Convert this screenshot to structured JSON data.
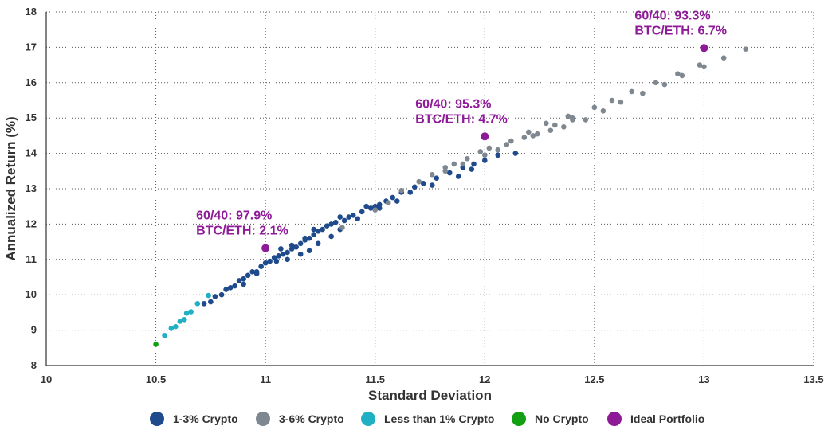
{
  "chart_data": {
    "type": "scatter",
    "title": "",
    "xlabel": "Standard Deviation",
    "ylabel": "Annualized Return (%)",
    "xlim": [
      10,
      13.5
    ],
    "ylim": [
      8,
      18
    ],
    "xticks": [
      10,
      10.5,
      11,
      11.5,
      12,
      12.5,
      13,
      13.5
    ],
    "xtick_labels": [
      "10",
      "10.5",
      "11",
      "11.5",
      "12",
      "12.5",
      "13",
      "13.5"
    ],
    "yticks": [
      8,
      9,
      10,
      11,
      12,
      13,
      14,
      15,
      16,
      17,
      18
    ],
    "ytick_labels": [
      "8",
      "9",
      "10",
      "11",
      "12",
      "13",
      "14",
      "15",
      "16",
      "17",
      "18"
    ],
    "grid": "dotted",
    "legend_position": "bottom",
    "series": [
      {
        "name": "1-3% Crypto",
        "color": "#1f4a8c",
        "points": [
          [
            10.72,
            9.75
          ],
          [
            10.75,
            9.8
          ],
          [
            10.77,
            9.95
          ],
          [
            10.8,
            10.0
          ],
          [
            10.82,
            10.15
          ],
          [
            10.84,
            10.2
          ],
          [
            10.86,
            10.25
          ],
          [
            10.88,
            10.4
          ],
          [
            10.9,
            10.45
          ],
          [
            10.92,
            10.55
          ],
          [
            10.94,
            10.65
          ],
          [
            10.96,
            10.6
          ],
          [
            10.98,
            10.8
          ],
          [
            11.0,
            10.9
          ],
          [
            11.02,
            10.95
          ],
          [
            11.04,
            11.05
          ],
          [
            11.06,
            11.1
          ],
          [
            11.08,
            11.15
          ],
          [
            11.1,
            11.2
          ],
          [
            11.12,
            11.3
          ],
          [
            11.14,
            11.35
          ],
          [
            11.16,
            11.45
          ],
          [
            11.18,
            11.55
          ],
          [
            11.2,
            11.6
          ],
          [
            11.22,
            11.7
          ],
          [
            11.24,
            11.8
          ],
          [
            11.26,
            11.85
          ],
          [
            11.28,
            11.95
          ],
          [
            11.3,
            12.0
          ],
          [
            11.32,
            12.05
          ],
          [
            11.36,
            12.1
          ],
          [
            11.38,
            12.2
          ],
          [
            11.4,
            12.25
          ],
          [
            11.44,
            12.35
          ],
          [
            11.48,
            12.45
          ],
          [
            11.5,
            12.5
          ],
          [
            11.52,
            12.55
          ],
          [
            11.55,
            12.65
          ],
          [
            11.58,
            12.75
          ],
          [
            11.62,
            12.9
          ],
          [
            11.68,
            13.05
          ],
          [
            11.72,
            13.15
          ],
          [
            11.78,
            13.3
          ],
          [
            11.84,
            13.45
          ],
          [
            11.9,
            13.6
          ],
          [
            11.95,
            13.7
          ],
          [
            12.0,
            13.8
          ],
          [
            12.06,
            13.95
          ],
          [
            12.14,
            14.0
          ],
          [
            10.9,
            10.3
          ],
          [
            10.96,
            10.65
          ],
          [
            11.05,
            10.95
          ],
          [
            11.1,
            11.0
          ],
          [
            11.16,
            11.15
          ],
          [
            11.2,
            11.25
          ],
          [
            11.24,
            11.45
          ],
          [
            11.3,
            11.65
          ],
          [
            11.34,
            11.85
          ],
          [
            11.42,
            12.15
          ],
          [
            11.52,
            12.45
          ],
          [
            11.6,
            12.65
          ],
          [
            11.66,
            12.9
          ],
          [
            11.76,
            13.1
          ],
          [
            11.88,
            13.35
          ],
          [
            11.94,
            13.55
          ],
          [
            11.07,
            11.3
          ],
          [
            11.12,
            11.4
          ],
          [
            11.18,
            11.6
          ],
          [
            11.22,
            11.85
          ],
          [
            11.34,
            12.2
          ],
          [
            11.46,
            12.5
          ]
        ]
      },
      {
        "name": "3-6% Crypto",
        "color": "#7f8890",
        "points": [
          [
            11.35,
            11.9
          ],
          [
            11.5,
            12.4
          ],
          [
            11.56,
            12.6
          ],
          [
            11.62,
            12.95
          ],
          [
            11.7,
            13.2
          ],
          [
            11.76,
            13.4
          ],
          [
            11.82,
            13.6
          ],
          [
            11.86,
            13.7
          ],
          [
            11.92,
            13.85
          ],
          [
            11.98,
            14.05
          ],
          [
            12.02,
            14.15
          ],
          [
            12.06,
            14.1
          ],
          [
            12.12,
            14.35
          ],
          [
            12.18,
            14.45
          ],
          [
            12.2,
            14.6
          ],
          [
            12.24,
            14.55
          ],
          [
            12.28,
            14.85
          ],
          [
            12.32,
            14.8
          ],
          [
            12.36,
            14.75
          ],
          [
            12.38,
            15.05
          ],
          [
            12.4,
            15.0
          ],
          [
            12.46,
            14.95
          ],
          [
            12.5,
            15.3
          ],
          [
            12.54,
            15.2
          ],
          [
            12.58,
            15.5
          ],
          [
            12.62,
            15.45
          ],
          [
            12.67,
            15.75
          ],
          [
            12.72,
            15.7
          ],
          [
            12.78,
            16.0
          ],
          [
            12.82,
            15.95
          ],
          [
            12.88,
            16.25
          ],
          [
            12.9,
            16.2
          ],
          [
            12.98,
            16.5
          ],
          [
            13.0,
            16.45
          ],
          [
            13.09,
            16.7
          ],
          [
            13.19,
            16.95
          ],
          [
            11.82,
            13.5
          ],
          [
            11.9,
            13.7
          ],
          [
            12.0,
            13.95
          ],
          [
            12.1,
            14.25
          ],
          [
            12.22,
            14.5
          ],
          [
            12.3,
            14.65
          ],
          [
            12.4,
            14.95
          ]
        ]
      },
      {
        "name": "Less than 1% Crypto",
        "color": "#1fb0c4",
        "points": [
          [
            10.54,
            8.85
          ],
          [
            10.57,
            9.05
          ],
          [
            10.59,
            9.1
          ],
          [
            10.61,
            9.25
          ],
          [
            10.63,
            9.3
          ],
          [
            10.64,
            9.48
          ],
          [
            10.66,
            9.52
          ],
          [
            10.69,
            9.75
          ],
          [
            10.74,
            9.98
          ]
        ]
      },
      {
        "name": "No Crypto",
        "color": "#12a012",
        "points": [
          [
            10.5,
            8.6
          ]
        ]
      },
      {
        "name": "Ideal Portfolio",
        "color": "#8e1a98",
        "points": [
          [
            11.0,
            11.32
          ],
          [
            12.0,
            14.48
          ],
          [
            13.0,
            16.98
          ]
        ]
      }
    ],
    "annotations": [
      {
        "lines": [
          "60/40: 97.9%",
          "BTC/ETH: 2.1%"
        ],
        "x": 11.0,
        "y": 11.32
      },
      {
        "lines": [
          "60/40: 95.3%",
          "BTC/ETH: 4.7%"
        ],
        "x": 12.0,
        "y": 14.48
      },
      {
        "lines": [
          "60/40: 93.3%",
          "BTC/ETH: 6.7%"
        ],
        "x": 13.0,
        "y": 16.98
      }
    ],
    "annotation_color": "#8e1a98"
  }
}
